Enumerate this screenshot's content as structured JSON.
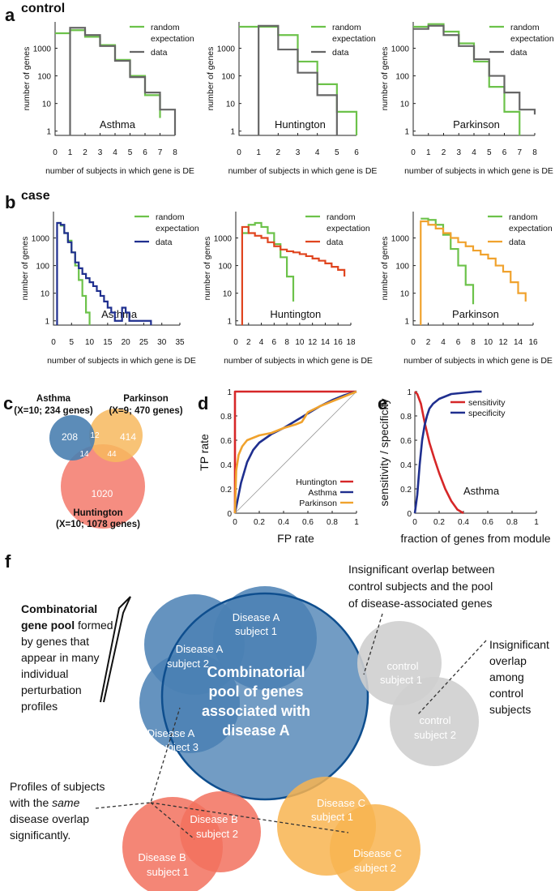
{
  "panels": {
    "a": "a",
    "b": "b",
    "c": "c",
    "d": "d",
    "e": "e",
    "f": "f"
  },
  "colors": {
    "random": "#6cc24a",
    "control_data": "#666666",
    "case_asthma": "#1f2f8f",
    "case_huntington": "#e0451f",
    "case_parkinson": "#f0a22d",
    "roc_huntington": "#d62728",
    "roc_asthma": "#1f2f8f",
    "roc_parkinson": "#f0a22d",
    "venn_asthma": "#4a7fb0",
    "venn_parkinson": "#f7b95e",
    "venn_huntington": "#f4877a",
    "pool": "#4a80b4",
    "pool_edge": "#0e4e8e",
    "control_circle": "#cfcfcf",
    "disease_b": "#f2715e",
    "disease_c": "#f8b450"
  },
  "chart_data": [
    {
      "id": "a-asthma",
      "type": "line",
      "row_title": "control",
      "name": "Asthma",
      "xlabel": "number of subjects in which gene is DE",
      "ylabel": "number of genes",
      "xlim": [
        0,
        8
      ],
      "xticks": [
        0,
        1,
        2,
        3,
        4,
        5,
        6,
        7,
        8
      ],
      "ylog": true,
      "ylim": [
        0.7,
        9000
      ],
      "yticks": [
        1,
        10,
        100,
        1000
      ],
      "legend_labels": [
        "random",
        "expectation",
        "data"
      ],
      "series": [
        {
          "name": "random expectation",
          "color": "random",
          "x": [
            0,
            1,
            2,
            3,
            4,
            5,
            6,
            7
          ],
          "values": [
            3500,
            4500,
            2600,
            1300,
            380,
            100,
            20,
            3
          ]
        },
        {
          "name": "data",
          "color": "control_data",
          "x": [
            1,
            1,
            2,
            3,
            4,
            5,
            6,
            7,
            8
          ],
          "values": [
            0.7,
            5500,
            3000,
            1200,
            350,
            90,
            25,
            6,
            0.7
          ]
        }
      ]
    },
    {
      "id": "a-huntington",
      "type": "line",
      "name": "Huntington",
      "xlabel": "number of subjects in which gene is DE",
      "ylabel": "number of genes",
      "xlim": [
        0,
        6
      ],
      "xticks": [
        0,
        1,
        2,
        3,
        4,
        5,
        6
      ],
      "ylog": true,
      "ylim": [
        0.7,
        9000
      ],
      "yticks": [
        1,
        10,
        100,
        1000
      ],
      "legend_labels": [
        "random",
        "expectation",
        "data"
      ],
      "series": [
        {
          "name": "random expectation",
          "color": "random",
          "x": [
            0,
            1,
            2,
            3,
            4,
            5,
            6
          ],
          "values": [
            6000,
            6000,
            3000,
            330,
            50,
            5,
            0.7
          ]
        },
        {
          "name": "data",
          "color": "control_data",
          "x": [
            1,
            1,
            2,
            3,
            4,
            5
          ],
          "values": [
            0.7,
            6500,
            900,
            130,
            20,
            0.7
          ]
        }
      ]
    },
    {
      "id": "a-parkinson",
      "type": "line",
      "name": "Parkinson",
      "xlabel": "number of subjects in which gene is DE",
      "ylabel": "number of genes",
      "xlim": [
        0,
        8
      ],
      "xticks": [
        0,
        1,
        2,
        3,
        4,
        5,
        6,
        7,
        8
      ],
      "ylog": true,
      "ylim": [
        0.7,
        9000
      ],
      "yticks": [
        1,
        10,
        100,
        1000
      ],
      "legend_labels": [
        "random",
        "expectation",
        "data"
      ],
      "series": [
        {
          "name": "random expectation",
          "color": "random",
          "x": [
            0,
            1,
            2,
            3,
            4,
            5,
            6,
            7
          ],
          "values": [
            6000,
            7500,
            4000,
            1500,
            330,
            40,
            5,
            0.7
          ]
        },
        {
          "name": "data",
          "color": "control_data",
          "x": [
            0,
            1,
            2,
            3,
            4,
            5,
            6,
            7,
            8
          ],
          "values": [
            5000,
            6500,
            3000,
            1200,
            400,
            100,
            25,
            6,
            4
          ]
        }
      ]
    },
    {
      "id": "b-asthma",
      "type": "line",
      "row_title": "case",
      "name": "Asthma",
      "xlabel": "number of subjects in which gene is DE",
      "ylabel": "number of genes",
      "xlim": [
        0,
        35
      ],
      "xticks": [
        0,
        5,
        10,
        15,
        20,
        25,
        30,
        35
      ],
      "ylog": true,
      "ylim": [
        0.7,
        9000
      ],
      "yticks": [
        1,
        10,
        100,
        1000
      ],
      "legend_labels": [
        "random",
        "expectation",
        "data"
      ],
      "series": [
        {
          "name": "random expectation",
          "color": "random",
          "x": [
            1,
            2,
            3,
            4,
            5,
            6,
            7,
            8,
            9,
            10
          ],
          "values": [
            3500,
            2800,
            1500,
            800,
            300,
            100,
            30,
            8,
            2,
            0.7
          ]
        },
        {
          "name": "data",
          "color": "case_asthma",
          "x": [
            1,
            1,
            2,
            3,
            4,
            5,
            6,
            7,
            8,
            9,
            10,
            11,
            12,
            13,
            14,
            15,
            16,
            17,
            18,
            19,
            20,
            21,
            22,
            23,
            24,
            25,
            26,
            27
          ],
          "values": [
            0.7,
            3500,
            3000,
            1500,
            700,
            300,
            130,
            80,
            50,
            35,
            25,
            18,
            12,
            8,
            5,
            3,
            2,
            1,
            1,
            3,
            2,
            1,
            1,
            1,
            1,
            1,
            1,
            0.7
          ]
        }
      ]
    },
    {
      "id": "b-huntington",
      "type": "line",
      "name": "Huntington",
      "xlabel": "number of subjects in which gene is DE",
      "ylabel": "number of genes",
      "xlim": [
        0,
        18
      ],
      "xticks": [
        0,
        2,
        4,
        6,
        8,
        10,
        12,
        14,
        16,
        18
      ],
      "ylog": true,
      "ylim": [
        0.7,
        9000
      ],
      "yticks": [
        1,
        10,
        100,
        1000
      ],
      "legend_labels": [
        "random",
        "expectation",
        "data"
      ],
      "series": [
        {
          "name": "random expectation",
          "color": "random",
          "x": [
            1,
            2,
            3,
            4,
            5,
            6,
            7,
            8,
            9
          ],
          "values": [
            1500,
            3000,
            3500,
            2500,
            1500,
            600,
            200,
            40,
            5
          ]
        },
        {
          "name": "data",
          "color": "case_huntington",
          "x": [
            1,
            1,
            2,
            3,
            4,
            5,
            6,
            7,
            8,
            9,
            10,
            11,
            12,
            13,
            14,
            15,
            16,
            17
          ],
          "values": [
            0.7,
            2500,
            1500,
            1200,
            1000,
            700,
            500,
            380,
            330,
            300,
            260,
            220,
            180,
            150,
            120,
            90,
            70,
            40
          ]
        }
      ]
    },
    {
      "id": "b-parkinson",
      "type": "line",
      "name": "Parkinson",
      "xlabel": "number of subjects in which gene is DE",
      "ylabel": "number of genes",
      "xlim": [
        0,
        16
      ],
      "xticks": [
        0,
        2,
        4,
        6,
        8,
        10,
        12,
        14,
        16
      ],
      "ylog": true,
      "ylim": [
        0.7,
        9000
      ],
      "yticks": [
        1,
        10,
        100,
        1000
      ],
      "legend_labels": [
        "random",
        "expectation",
        "data"
      ],
      "series": [
        {
          "name": "random expectation",
          "color": "random",
          "x": [
            1,
            2,
            3,
            4,
            5,
            6,
            7,
            8
          ],
          "values": [
            5000,
            4500,
            3000,
            1300,
            400,
            100,
            20,
            4
          ]
        },
        {
          "name": "data",
          "color": "case_parkinson",
          "x": [
            1,
            1,
            2,
            3,
            4,
            5,
            6,
            7,
            8,
            9,
            10,
            11,
            12,
            13,
            14,
            15
          ],
          "values": [
            0.7,
            4000,
            3000,
            2200,
            1500,
            1000,
            700,
            500,
            350,
            250,
            180,
            100,
            60,
            25,
            10,
            5
          ]
        }
      ]
    },
    {
      "id": "c",
      "type": "venn",
      "sets": [
        {
          "line1": "Asthma",
          "line2": "(X=10; 234 genes)",
          "color": "venn_asthma",
          "only": "208"
        },
        {
          "line1": "Parkinson",
          "line2": "(X=9; 470 genes)",
          "color": "venn_parkinson",
          "only": "414"
        },
        {
          "line1": "Huntington",
          "line2": "(X=10; 1078 genes)",
          "color": "venn_huntington",
          "only": "1020"
        }
      ],
      "overlaps": {
        "asthma_parkinson": "12",
        "asthma_huntington": "14",
        "parkinson_huntington": "44"
      }
    },
    {
      "id": "d",
      "type": "line",
      "xlabel": "FP rate",
      "ylabel": "TP rate",
      "xlim": [
        0,
        1
      ],
      "ylim": [
        0,
        1
      ],
      "xticks": [
        0,
        0.2,
        0.4,
        0.6,
        0.8,
        1
      ],
      "yticks": [
        0,
        0.2,
        0.4,
        0.6,
        0.8,
        1
      ],
      "xtick_labels": [
        "0",
        "0.2",
        "0.4",
        "0.6",
        "0.8",
        "1"
      ],
      "ytick_labels": [
        "0",
        "0.2",
        "0.4",
        "0.6",
        "0.8",
        "1"
      ],
      "series": [
        {
          "name": "Huntington",
          "color": "roc_huntington",
          "x": [
            0,
            0,
            1
          ],
          "values": [
            0,
            1,
            1
          ]
        },
        {
          "name": "Asthma",
          "color": "roc_asthma",
          "x": [
            0,
            0.02,
            0.05,
            0.1,
            0.15,
            0.2,
            0.3,
            0.4,
            0.5,
            0.6,
            0.7,
            0.8,
            0.9,
            1
          ],
          "values": [
            0,
            0.1,
            0.25,
            0.42,
            0.52,
            0.58,
            0.65,
            0.7,
            0.76,
            0.82,
            0.88,
            0.93,
            0.97,
            1
          ]
        },
        {
          "name": "Parkinson",
          "color": "roc_parkinson",
          "x": [
            0,
            0.01,
            0.03,
            0.06,
            0.1,
            0.15,
            0.2,
            0.3,
            0.4,
            0.5,
            0.55,
            0.6,
            0.7,
            0.8,
            0.9,
            1
          ],
          "values": [
            0,
            0.35,
            0.48,
            0.55,
            0.6,
            0.62,
            0.64,
            0.66,
            0.7,
            0.73,
            0.75,
            0.83,
            0.88,
            0.92,
            0.96,
            1
          ]
        }
      ]
    },
    {
      "id": "e",
      "type": "line",
      "xlabel": "fraction of genes from module",
      "ylabel": "sensitivity / specificity",
      "annotation": "Asthma",
      "xlim": [
        0,
        1
      ],
      "ylim": [
        0,
        1
      ],
      "xticks": [
        0,
        0.2,
        0.4,
        0.6,
        0.8,
        1
      ],
      "yticks": [
        0,
        0.2,
        0.4,
        0.6,
        0.8,
        1
      ],
      "xtick_labels": [
        "0",
        "0.2",
        "0.4",
        "0.6",
        "0.8",
        "1"
      ],
      "ytick_labels": [
        "0",
        "0.2",
        "0.4",
        "0.6",
        "0.8",
        "1"
      ],
      "series": [
        {
          "name": "sensitivity",
          "color": "roc_huntington",
          "x": [
            0,
            0.02,
            0.05,
            0.08,
            0.12,
            0.16,
            0.2,
            0.25,
            0.3,
            0.35,
            0.4
          ],
          "values": [
            1,
            0.98,
            0.9,
            0.75,
            0.58,
            0.45,
            0.33,
            0.2,
            0.1,
            0.03,
            0
          ]
        },
        {
          "name": "specificity",
          "color": "roc_asthma",
          "x": [
            0,
            0.02,
            0.04,
            0.06,
            0.08,
            0.1,
            0.12,
            0.15,
            0.2,
            0.25,
            0.3,
            0.4,
            0.5,
            0.55
          ],
          "values": [
            0,
            0.15,
            0.4,
            0.6,
            0.72,
            0.8,
            0.86,
            0.9,
            0.94,
            0.96,
            0.98,
            0.99,
            1,
            1
          ]
        }
      ]
    }
  ],
  "diagram": {
    "left_bold1": "Combinatorial",
    "left_bold2": "gene pool",
    "left_tail2": " formed",
    "left_lines": [
      "by genes that",
      "appear in many",
      "individual",
      "perturbation",
      "profiles"
    ],
    "pool_lines": [
      "Combinatorial",
      "pool of genes",
      "associated with",
      "disease A"
    ],
    "subjects": [
      {
        "l1": "Disease A",
        "l2": "subject 1"
      },
      {
        "l1": "Disease A",
        "l2": "subject 2"
      },
      {
        "l1": "Disease A",
        "l2": "subject 3"
      },
      {
        "l1": "control",
        "l2": "subject 1"
      },
      {
        "l1": "control",
        "l2": "subject 2"
      },
      {
        "l1": "Disease B",
        "l2": "subject 1"
      },
      {
        "l1": "Disease B",
        "l2": "subject 2"
      },
      {
        "l1": "Disease C",
        "l2": "subject 1"
      },
      {
        "l1": "Disease C",
        "l2": "subject 2"
      }
    ],
    "top_note": [
      "Insignificant overlap between",
      "control subjects and the pool",
      "of disease-associated genes"
    ],
    "right_note": [
      "Insignificant",
      "overlap",
      "among",
      "control",
      "subjects"
    ],
    "bottom_note_1": "Profiles of subjects",
    "bottom_note_2a": "with the ",
    "bottom_note_2b": "same",
    "bottom_note_3": "disease overlap",
    "bottom_note_4": "significantly."
  }
}
